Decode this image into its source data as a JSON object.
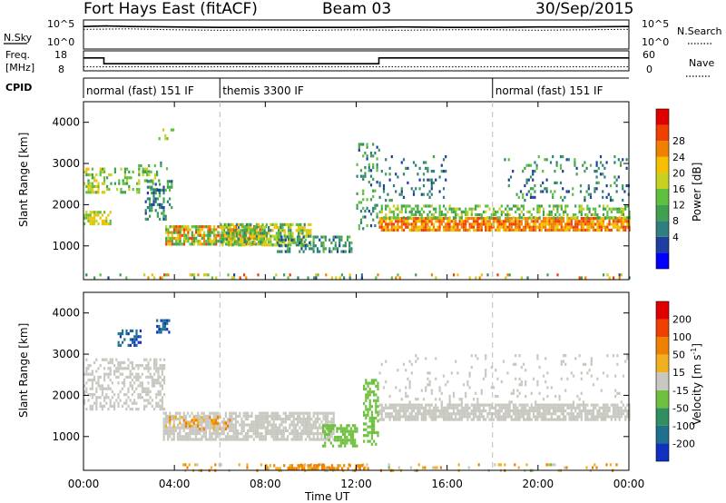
{
  "header": {
    "station": "Fort Hays East (fitACF)",
    "beam": "Beam 03",
    "date": "30/Sep/2015"
  },
  "labels": {
    "nsky": "N.Sky",
    "freq_top": "Freq.",
    "freq_unit": "[MHz]",
    "cpid": "CPID",
    "nsearch": "N.Search",
    "nave": "Nave",
    "time_axis": "Time UT",
    "slant_range": "Slant Range [km]",
    "power": "Power [dB]",
    "velocity_pre": "Velocity [m s",
    "velocity_sup": "-1",
    "velocity_post": "]"
  },
  "noise_panel": {
    "left_ticks": [
      "10^5",
      "10^0"
    ],
    "right_ticks": [
      "10^5",
      "10^0"
    ]
  },
  "freq_panel": {
    "left_ticks": [
      "18",
      "8"
    ],
    "right_ticks": [
      "60",
      "0"
    ]
  },
  "cpid_segments": [
    {
      "label": "normal (fast) 151 IF",
      "start": 0,
      "end": 6
    },
    {
      "label": "themis 3300 IF",
      "start": 6,
      "end": 18
    },
    {
      "label": "normal (fast) 151 IF",
      "start": 18,
      "end": 24
    }
  ],
  "time_ticks": [
    "00:00",
    "04:00",
    "08:00",
    "12:00",
    "16:00",
    "20:00",
    "00:00"
  ],
  "range_ticks": [
    "1000",
    "2000",
    "3000",
    "4000"
  ],
  "power_colorbar": {
    "labels": [
      "4",
      "8",
      "12",
      "16",
      "20",
      "24",
      "28"
    ],
    "colors": [
      "#0000ff",
      "#1f3fa0",
      "#2f7f7f",
      "#3fa050",
      "#5fc040",
      "#c8d020",
      "#f5c000",
      "#f08000",
      "#f04000",
      "#e00000"
    ]
  },
  "velocity_colorbar": {
    "labels": [
      "200",
      "100",
      "50",
      "15",
      "-15",
      "-50",
      "-100",
      "-200"
    ],
    "colors": [
      "#1030c0",
      "#1f6f8f",
      "#2f8f5f",
      "#70c040",
      "#c8c8c0",
      "#f0b020",
      "#f08000",
      "#f04000",
      "#e00000"
    ]
  },
  "chart_data": [
    {
      "type": "line",
      "title": "N.Sky / N.Search",
      "x_range_hours": [
        0,
        24
      ],
      "series": [
        {
          "name": "N.Sky",
          "style": "solid",
          "x": [
            0,
            1,
            2,
            4,
            6,
            8,
            10,
            12,
            14,
            16,
            18,
            20,
            22,
            24
          ],
          "y_log10": [
            4.2,
            4.3,
            4.2,
            4.1,
            4.0,
            4.0,
            4.0,
            4.0,
            4.1,
            4.0,
            4.0,
            4.1,
            4.1,
            4.2
          ]
        },
        {
          "name": "N.Search",
          "style": "dotted",
          "x": [
            0,
            2,
            4,
            6,
            8,
            10,
            12,
            14,
            16,
            18,
            20,
            22,
            24
          ],
          "y_log10": [
            3.6,
            3.7,
            3.5,
            3.4,
            3.5,
            3.4,
            3.5,
            3.4,
            3.5,
            3.5,
            3.4,
            3.5,
            3.6
          ]
        }
      ]
    },
    {
      "type": "line",
      "title": "Freq. / Nave",
      "x_range_hours": [
        0,
        24
      ],
      "series": [
        {
          "name": "Freq.",
          "units": "MHz",
          "style": "solid",
          "x": [
            0,
            0.9,
            0.9,
            13,
            13,
            24
          ],
          "y": [
            14.8,
            14.8,
            11.2,
            11.2,
            14.8,
            14.8
          ]
        },
        {
          "name": "Nave",
          "style": "dotted",
          "x": [
            0,
            24
          ],
          "y": [
            8,
            8
          ]
        }
      ]
    },
    {
      "type": "heatmap",
      "name": "power",
      "x_range_hours": [
        0,
        24
      ],
      "ylim_km": [
        180,
        4500
      ],
      "regions": [
        {
          "x0": 0,
          "x1": 0.9,
          "y0": 2300,
          "y1": 2900,
          "v0": 10,
          "v1": 22,
          "d": 0.55
        },
        {
          "x0": 0,
          "x1": 1.2,
          "y0": 1550,
          "y1": 1850,
          "v0": 14,
          "v1": 22,
          "d": 0.7
        },
        {
          "x0": 1.0,
          "x1": 3.3,
          "y0": 2300,
          "y1": 2900,
          "v0": 10,
          "v1": 18,
          "d": 0.3
        },
        {
          "x0": 3.3,
          "x1": 4.0,
          "y0": 3600,
          "y1": 3850,
          "v0": 14,
          "v1": 18,
          "d": 0.45
        },
        {
          "x0": 2.4,
          "x1": 3.8,
          "y0": 2800,
          "y1": 3050,
          "v0": 8,
          "v1": 14,
          "d": 0.2
        },
        {
          "x0": 2.7,
          "x1": 3.9,
          "y0": 1650,
          "y1": 2600,
          "v0": 4,
          "v1": 14,
          "d": 0.35
        },
        {
          "x0": 3.6,
          "x1": 8.0,
          "y0": 1050,
          "y1": 1500,
          "v0": 10,
          "v1": 28,
          "d": 0.8
        },
        {
          "x0": 6.0,
          "x1": 10.0,
          "y0": 1000,
          "y1": 1550,
          "v0": 8,
          "v1": 22,
          "d": 0.65
        },
        {
          "x0": 8.5,
          "x1": 11.8,
          "y0": 850,
          "y1": 1250,
          "v0": 4,
          "v1": 14,
          "d": 0.5
        },
        {
          "x0": 12.0,
          "x1": 13.0,
          "y0": 1450,
          "y1": 3500,
          "v0": 4,
          "v1": 16,
          "d": 0.25
        },
        {
          "x0": 13.0,
          "x1": 24.0,
          "y0": 1400,
          "y1": 1700,
          "v0": 20,
          "v1": 28,
          "d": 0.85
        },
        {
          "x0": 13.0,
          "x1": 24.0,
          "y0": 1700,
          "y1": 2000,
          "v0": 10,
          "v1": 18,
          "d": 0.45
        },
        {
          "x0": 13.0,
          "x1": 16.0,
          "y0": 2100,
          "y1": 3200,
          "v0": 4,
          "v1": 12,
          "d": 0.12
        },
        {
          "x0": 18.5,
          "x1": 24.0,
          "y0": 2100,
          "y1": 3200,
          "v0": 4,
          "v1": 14,
          "d": 0.14
        },
        {
          "x0": 0.0,
          "x1": 24.0,
          "y0": 200,
          "y1": 330,
          "v0": 4,
          "v1": 28,
          "d": 0.18
        }
      ]
    },
    {
      "type": "heatmap",
      "name": "velocity",
      "x_range_hours": [
        0,
        24
      ],
      "ylim_km": [
        180,
        4500
      ],
      "regions": [
        {
          "x0": 0.0,
          "x1": 3.6,
          "y0": 1650,
          "y1": 2900,
          "v0": -10,
          "v1": 10,
          "d": 0.45
        },
        {
          "x0": 1.5,
          "x1": 2.5,
          "y0": 3200,
          "y1": 3600,
          "v0": 120,
          "v1": 250,
          "d": 0.5
        },
        {
          "x0": 3.2,
          "x1": 3.8,
          "y0": 3550,
          "y1": 3850,
          "v0": 150,
          "v1": 250,
          "d": 0.6
        },
        {
          "x0": 3.5,
          "x1": 11.0,
          "y0": 950,
          "y1": 1600,
          "v0": -12,
          "v1": 12,
          "d": 0.75
        },
        {
          "x0": 3.5,
          "x1": 6.5,
          "y0": 1200,
          "y1": 1500,
          "v0": -80,
          "v1": -20,
          "d": 0.3
        },
        {
          "x0": 10.5,
          "x1": 12.0,
          "y0": 800,
          "y1": 1300,
          "v0": 16,
          "v1": 45,
          "d": 0.6
        },
        {
          "x0": 12.3,
          "x1": 13.0,
          "y0": 800,
          "y1": 2400,
          "v0": 16,
          "v1": 45,
          "d": 0.5
        },
        {
          "x0": 13.0,
          "x1": 24.0,
          "y0": 1400,
          "y1": 1800,
          "v0": -12,
          "v1": 12,
          "d": 0.8
        },
        {
          "x0": 13.0,
          "x1": 24.0,
          "y0": 1800,
          "y1": 3000,
          "v0": -15,
          "v1": 15,
          "d": 0.08
        },
        {
          "x0": 4.0,
          "x1": 24.0,
          "y0": 200,
          "y1": 350,
          "v0": -80,
          "v1": 20,
          "d": 0.15
        },
        {
          "x0": 8.0,
          "x1": 12.5,
          "y0": 200,
          "y1": 330,
          "v0": -100,
          "v1": -20,
          "d": 0.55
        }
      ]
    }
  ]
}
